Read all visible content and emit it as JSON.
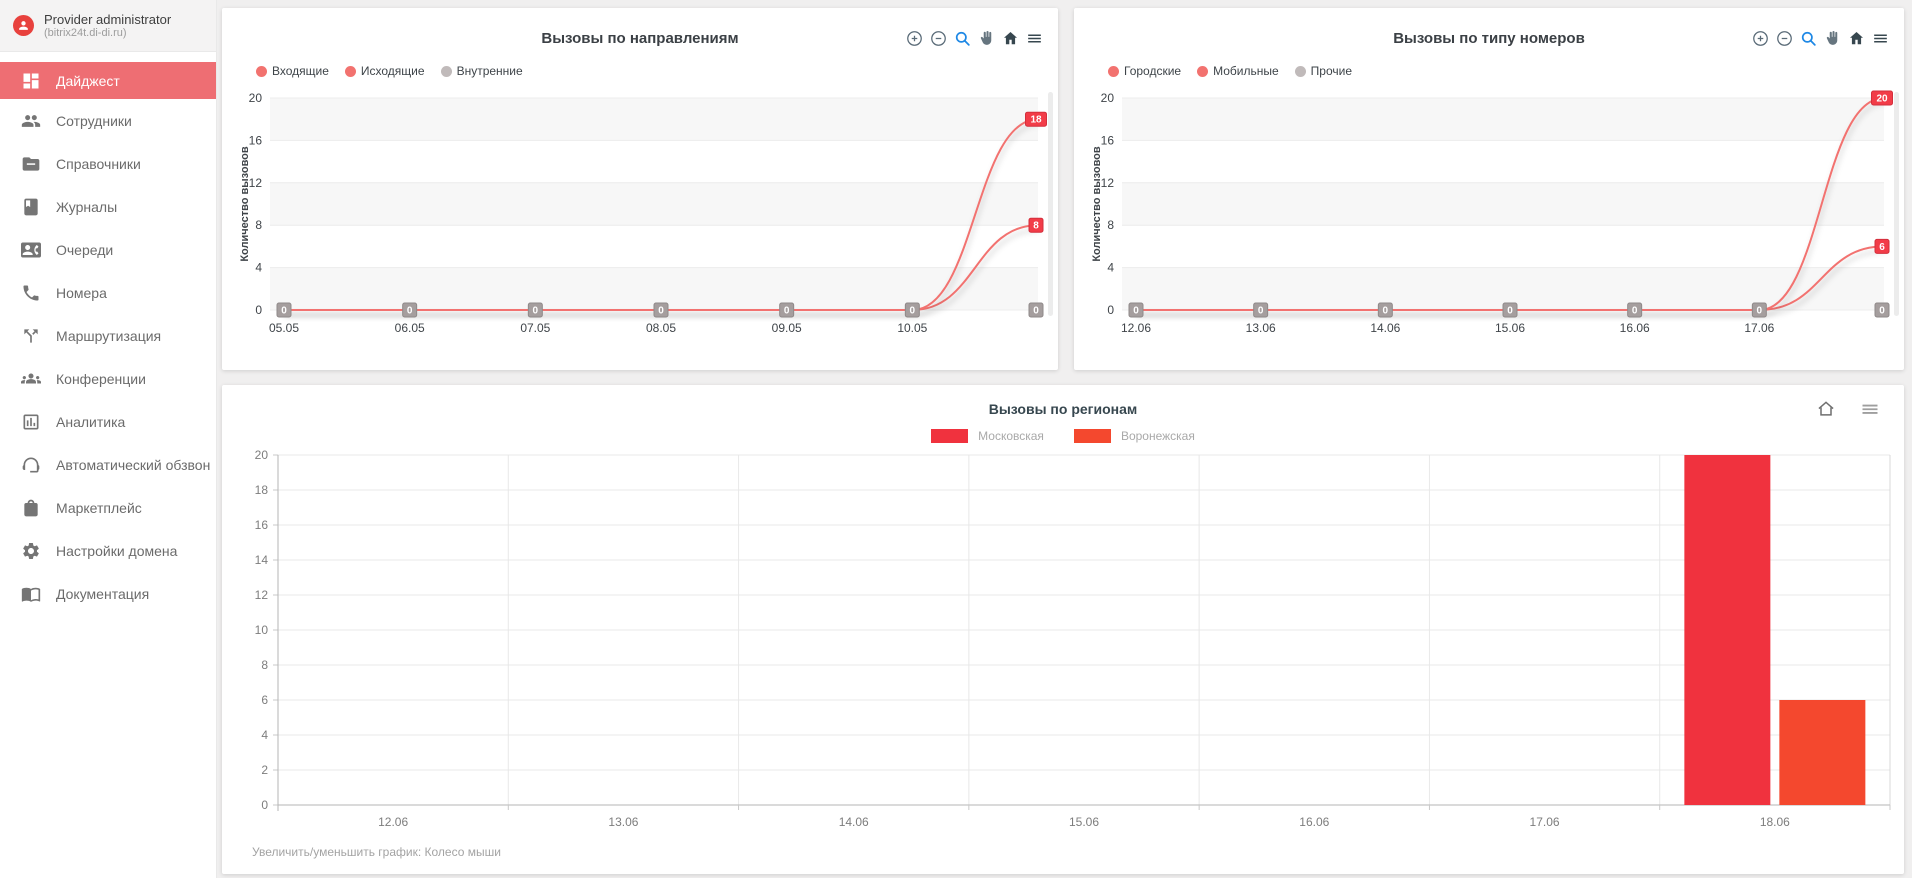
{
  "sidebar": {
    "user": {
      "name": "Provider administrator",
      "domain": "(bitrix24t.di-di.ru)"
    },
    "active_color": "#ee6e73",
    "items": [
      {
        "label": "Дайджест",
        "icon": "dashboard",
        "active": true
      },
      {
        "label": "Сотрудники",
        "icon": "people"
      },
      {
        "label": "Справочники",
        "icon": "folder"
      },
      {
        "label": "Журналы",
        "icon": "journal"
      },
      {
        "label": "Очереди",
        "icon": "contact-phone"
      },
      {
        "label": "Номера",
        "icon": "phone"
      },
      {
        "label": "Маршрутизация",
        "icon": "call-split"
      },
      {
        "label": "Конференции",
        "icon": "groups"
      },
      {
        "label": "Аналитика",
        "icon": "bar-chart"
      },
      {
        "label": "Автоматический обзвон",
        "icon": "headset"
      },
      {
        "label": "Маркетплейс",
        "icon": "shopping-bag"
      },
      {
        "label": "Настройки домена",
        "icon": "gear"
      },
      {
        "label": "Документация",
        "icon": "open-book"
      }
    ]
  },
  "toolbar": {
    "icons": [
      "zoom-in",
      "zoom-out",
      "lens",
      "pan",
      "home",
      "menu"
    ],
    "lens_active_color": "#1e88e5"
  },
  "footer_hint": "Увеличить/уменьшить график: Колесо мыши",
  "colors": {
    "line_red": "#f2726f",
    "line_gray": "#c0baba",
    "badge_red": "#f23c48",
    "badge_gray": "#a59e9e",
    "bar_red": "#f0323e",
    "bar_orange": "#f4482e"
  },
  "chart_data": [
    {
      "type": "line",
      "title": "Вызовы по направлениям",
      "ylabel": "Количество вызовов",
      "categories": [
        "05.05",
        "06.05",
        "07.05",
        "08.05",
        "09.05",
        "10.05",
        ""
      ],
      "ylim": [
        0,
        20
      ],
      "yticks": [
        0,
        4,
        8,
        12,
        16,
        20
      ],
      "series": [
        {
          "name": "Входящие",
          "color": "#f2726f",
          "muted": false,
          "values": [
            0,
            0,
            0,
            0,
            0,
            0,
            18
          ]
        },
        {
          "name": "Исходящие",
          "color": "#f2726f",
          "muted": false,
          "values": [
            0,
            0,
            0,
            0,
            0,
            0,
            8
          ]
        },
        {
          "name": "Внутренние",
          "color": "#c0baba",
          "muted": true,
          "values": [
            0,
            0,
            0,
            0,
            0,
            0,
            0
          ]
        }
      ]
    },
    {
      "type": "line",
      "title": "Вызовы по типу номеров",
      "ylabel": "Количество вызовов",
      "categories": [
        "12.06",
        "13.06",
        "14.06",
        "15.06",
        "16.06",
        "17.06",
        ""
      ],
      "ylim": [
        0,
        20
      ],
      "yticks": [
        0,
        4,
        8,
        12,
        16,
        20
      ],
      "series": [
        {
          "name": "Городские",
          "color": "#f2726f",
          "muted": false,
          "values": [
            0,
            0,
            0,
            0,
            0,
            0,
            20
          ]
        },
        {
          "name": "Мобильные",
          "color": "#f2726f",
          "muted": false,
          "values": [
            0,
            0,
            0,
            0,
            0,
            0,
            6
          ]
        },
        {
          "name": "Прочие",
          "color": "#c0baba",
          "muted": true,
          "values": [
            0,
            0,
            0,
            0,
            0,
            0,
            0
          ]
        }
      ]
    },
    {
      "type": "bar",
      "title": "Вызовы по регионам",
      "categories": [
        "12.06",
        "13.06",
        "14.06",
        "15.06",
        "16.06",
        "17.06",
        "18.06"
      ],
      "ylim": [
        0,
        20
      ],
      "yticks": [
        0,
        2,
        4,
        6,
        8,
        10,
        12,
        14,
        16,
        18,
        20
      ],
      "series": [
        {
          "name": "Московская",
          "color": "#f0323e",
          "values": [
            null,
            null,
            null,
            null,
            null,
            null,
            20
          ]
        },
        {
          "name": "Воронежская",
          "color": "#f4482e",
          "values": [
            null,
            null,
            null,
            null,
            null,
            null,
            6
          ]
        }
      ]
    }
  ]
}
